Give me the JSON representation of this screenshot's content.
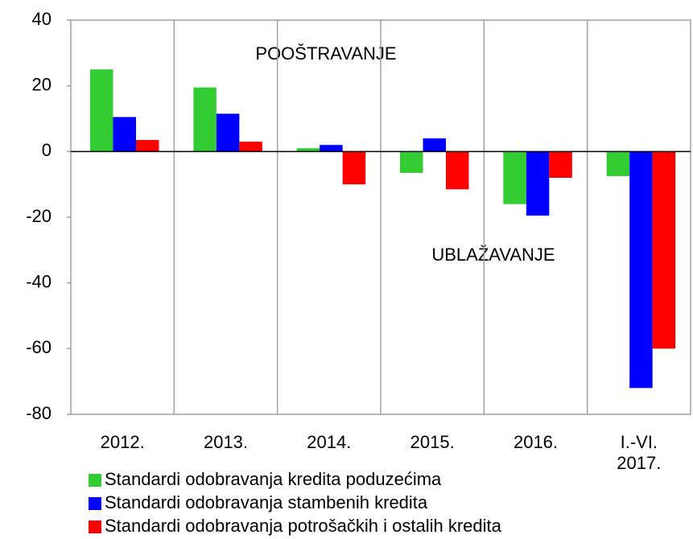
{
  "chart_data": {
    "type": "bar",
    "categories": [
      "2012.",
      "2013.",
      "2014.",
      "2015.",
      "2016.",
      "I.-VI. 2017."
    ],
    "series": [
      {
        "name": "Standardi odobravanja kredita poduzećima",
        "color": "#33cc33",
        "values": [
          25,
          19.5,
          1,
          -6.5,
          -16,
          -7.5
        ]
      },
      {
        "name": "Standardi odobravanja stambenih kredita",
        "color": "#0000ff",
        "values": [
          10.5,
          11.5,
          2,
          4,
          -19.5,
          -72
        ]
      },
      {
        "name": "Standardi odobravanja potrošačkih i ostalih kredita",
        "color": "#ff0000",
        "values": [
          3.5,
          3,
          -10,
          -11.5,
          -8,
          -60
        ]
      }
    ],
    "annotations": [
      "POOŠTRAVANJE",
      "UBLAŽAVANJE"
    ],
    "ylim": [
      -80,
      40
    ],
    "yticks": [
      -80,
      -60,
      -40,
      -20,
      0,
      20,
      40
    ],
    "grid": true
  }
}
